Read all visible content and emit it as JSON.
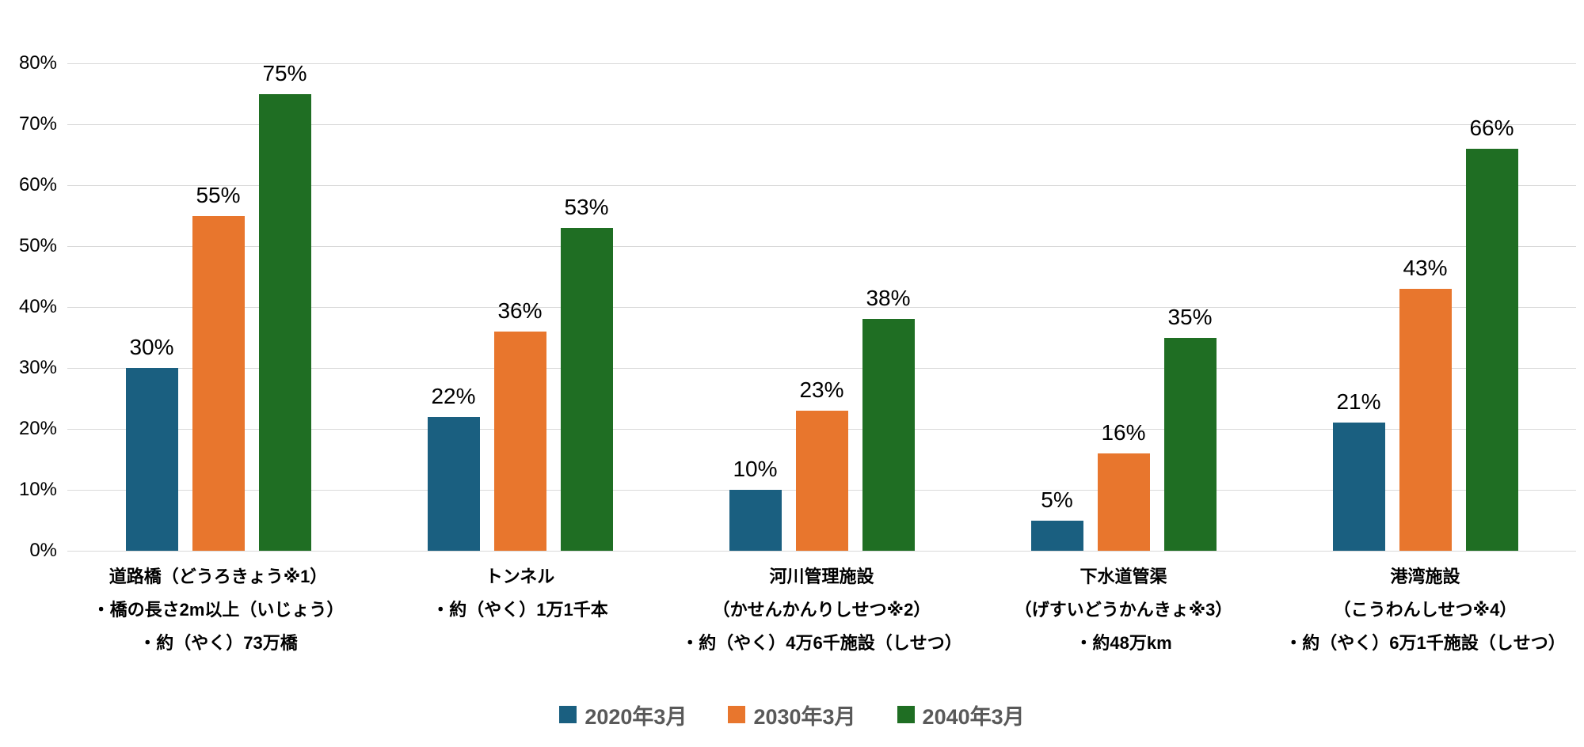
{
  "chart_data": {
    "type": "bar",
    "title": "",
    "y_axis": {
      "min": 0,
      "max": 80,
      "step": 10,
      "suffix": "%",
      "tick_labels": [
        "0%",
        "10%",
        "20%",
        "30%",
        "40%",
        "50%",
        "60%",
        "70%",
        "80%"
      ]
    },
    "grid": true,
    "legend_position": "bottom",
    "value_label_suffix": "%",
    "categories": [
      {
        "lines": [
          "道路橋（どうろきょう※1）",
          "・橋の長さ2m以上（いじょう）",
          "・約（やく）73万橋"
        ]
      },
      {
        "lines": [
          "トンネル",
          "・約（やく）1万1千本"
        ]
      },
      {
        "lines": [
          "河川管理施設",
          "（かせんかんりしせつ※2）",
          "・約（やく）4万6千施設（しせつ）"
        ]
      },
      {
        "lines": [
          "下水道管渠",
          "（げすいどうかんきょ※3）",
          "・約48万km"
        ]
      },
      {
        "lines": [
          "港湾施設",
          "（こうわんしせつ※4）",
          "・約（やく）6万1千施設（しせつ）"
        ]
      }
    ],
    "series": [
      {
        "name": "2020年3月",
        "color": "#1A5F80",
        "values": [
          30,
          22,
          10,
          5,
          21
        ]
      },
      {
        "name": "2030年3月",
        "color": "#E8762D",
        "values": [
          55,
          36,
          23,
          16,
          43
        ]
      },
      {
        "name": "2040年3月",
        "color": "#1F6E23",
        "values": [
          75,
          53,
          38,
          35,
          66
        ]
      }
    ]
  },
  "colors": {
    "background": "#FFFFFF",
    "grid": "#D9D9D9",
    "value_label": "#000000",
    "axis_label": "#000000",
    "category_label": "#000000",
    "legend_text": "#595959"
  }
}
